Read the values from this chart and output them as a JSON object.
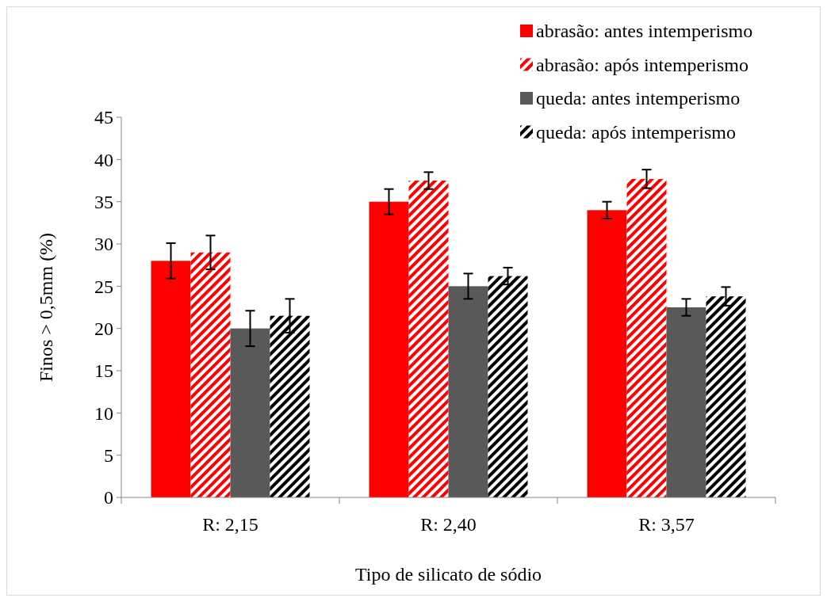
{
  "chart_data": {
    "type": "bar",
    "xlabel": "Tipo de silicato de sódio",
    "ylabel": "Finos > 0,5mm (%)",
    "categories": [
      "R: 2,15",
      "R: 2,40",
      "R: 3,57"
    ],
    "series": [
      {
        "name": "abrasão: antes intemperismo",
        "color": "#ff0000",
        "values": [
          28,
          35,
          34
        ],
        "errors": [
          2.1,
          1.5,
          1
        ]
      },
      {
        "name": "abrasão: após intemperismo",
        "color": "#ff0000",
        "values": [
          29,
          37.5,
          37.7
        ],
        "errors": [
          2,
          1,
          1.1
        ]
      },
      {
        "name": "queda: antes intemperismo",
        "color": "#595959",
        "values": [
          20,
          25,
          22.5
        ],
        "errors": [
          2.1,
          1.5,
          1
        ]
      },
      {
        "name": "queda: após intemperismo",
        "color": "#000000",
        "values": [
          21.5,
          26.2,
          23.8
        ],
        "errors": [
          2,
          1,
          1.1
        ]
      }
    ],
    "ylim": [
      0,
      45
    ],
    "yticks": [
      0,
      5,
      10,
      15,
      20,
      25,
      30,
      35,
      40,
      45
    ],
    "grid": false,
    "legend": "top right"
  }
}
